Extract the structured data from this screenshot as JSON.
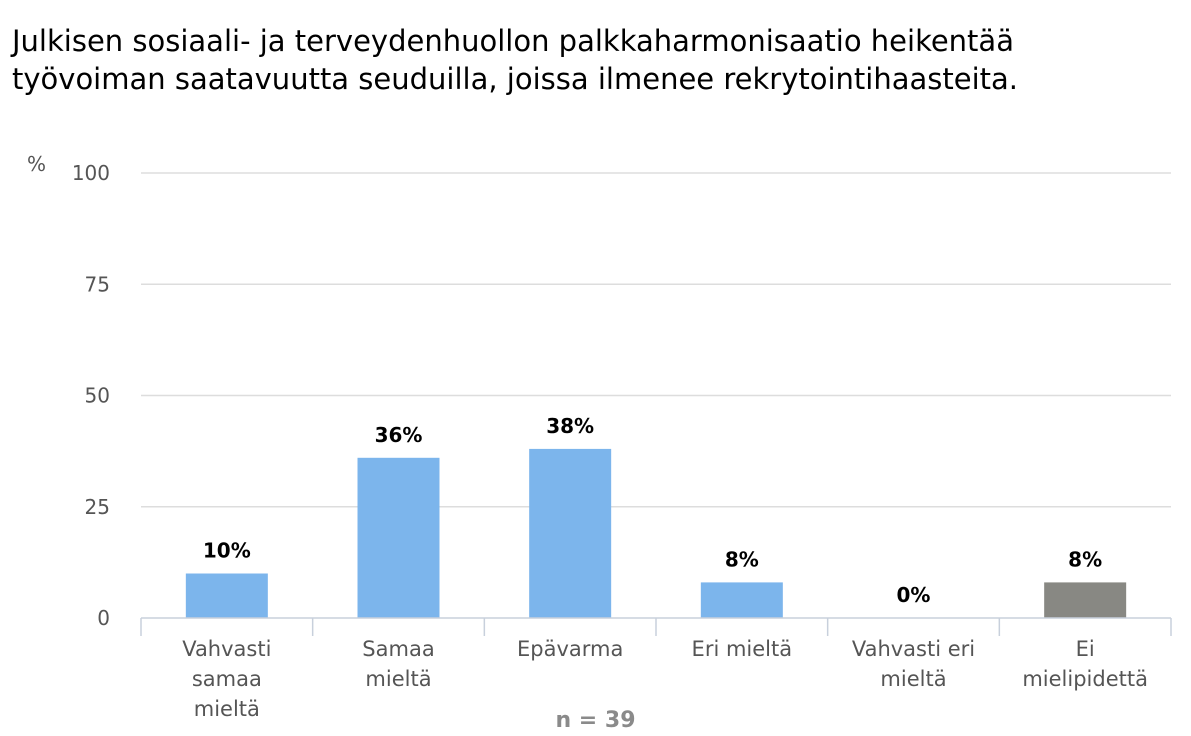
{
  "chart_data": {
    "type": "bar",
    "title": "Julkisen sosiaali- ja terveydenhuollon palkkaharmonisaatio heikentää työvoiman saatavuutta seuduilla, joissa ilmenee rekrytointihaasteita.",
    "ylabel": "%",
    "ylim": [
      0,
      100
    ],
    "yticks": [
      0,
      25,
      50,
      75,
      100
    ],
    "grid": true,
    "categories": [
      [
        "Vahvasti",
        "samaa",
        "mieltä"
      ],
      [
        "Samaa",
        "mieltä"
      ],
      [
        "Epävarma"
      ],
      [
        "Eri mieltä"
      ],
      [
        "Vahvasti eri",
        "mieltä"
      ],
      [
        "Ei",
        "mielipidettä"
      ]
    ],
    "values": [
      10,
      36,
      38,
      8,
      0,
      8
    ],
    "value_labels": [
      "10%",
      "36%",
      "38%",
      "8%",
      "0%",
      "8%"
    ],
    "colors": [
      "#7cb5ec",
      "#7cb5ec",
      "#7cb5ec",
      "#7cb5ec",
      "#7cb5ec",
      "#888883"
    ],
    "note": "n = 39"
  }
}
